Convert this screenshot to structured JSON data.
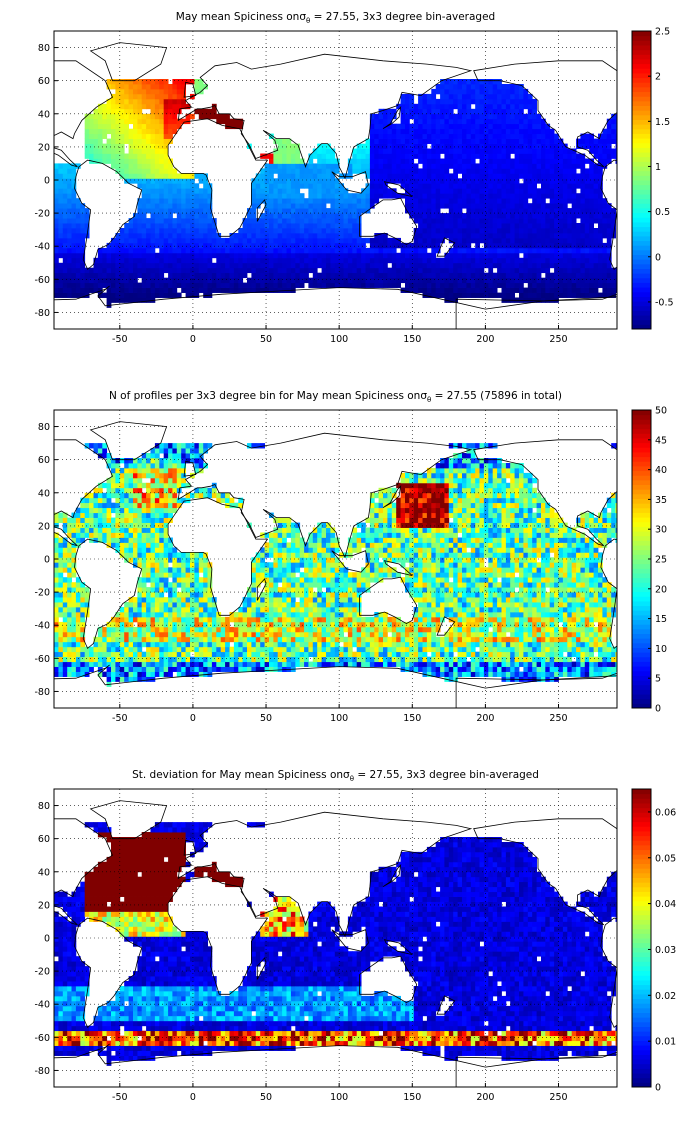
{
  "chart_data": [
    {
      "type": "heatmap",
      "title_main": "May mean Spiciness on",
      "title_sigma": "σ",
      "title_sub": "θ",
      "title_rest": " = 27.55, 3x3 degree bin-averaged",
      "xlim": [
        -95,
        290
      ],
      "ylim": [
        -90,
        90
      ],
      "xticks": [
        -50,
        0,
        50,
        100,
        150,
        200,
        250
      ],
      "yticks": [
        -80,
        -60,
        -40,
        -20,
        0,
        20,
        40,
        60,
        80
      ],
      "colorbar": {
        "min": -0.8,
        "max": 2.5,
        "ticks": [
          -0.5,
          0,
          0.5,
          1,
          1.5,
          2,
          2.5
        ]
      },
      "grid": true,
      "colormap": "jet"
    },
    {
      "type": "heatmap",
      "title_main": "N of profiles per 3x3 degree bin for May mean Spiciness on",
      "title_sigma": "σ",
      "title_sub": "θ",
      "title_rest": " = 27.55 (75896 in total)",
      "xlim": [
        -95,
        290
      ],
      "ylim": [
        -90,
        90
      ],
      "xticks": [
        -50,
        0,
        50,
        100,
        150,
        200,
        250
      ],
      "yticks": [
        -80,
        -60,
        -40,
        -20,
        0,
        20,
        40,
        60,
        80
      ],
      "colorbar": {
        "min": 0,
        "max": 50,
        "ticks": [
          0,
          5,
          10,
          15,
          20,
          25,
          30,
          35,
          40,
          45,
          50
        ]
      },
      "grid": true,
      "colormap": "jet"
    },
    {
      "type": "heatmap",
      "title_main": "St. deviation for May mean Spiciness on",
      "title_sigma": "σ",
      "title_sub": "θ",
      "title_rest": " = 27.55, 3x3 degree bin-averaged",
      "xlim": [
        -95,
        290
      ],
      "ylim": [
        -90,
        90
      ],
      "xticks": [
        -50,
        0,
        50,
        100,
        150,
        200,
        250
      ],
      "yticks": [
        -80,
        -60,
        -40,
        -20,
        0,
        20,
        40,
        60,
        80
      ],
      "colorbar": {
        "min": 0,
        "max": 0.065,
        "ticks": [
          0,
          0.01,
          0.02,
          0.03,
          0.04,
          0.05,
          0.06
        ]
      },
      "grid": true,
      "colormap": "jet"
    }
  ]
}
